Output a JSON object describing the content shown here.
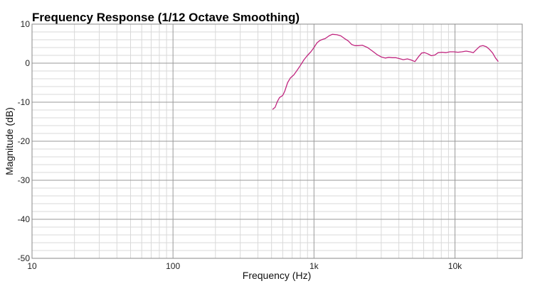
{
  "chart_data": {
    "type": "line",
    "title": "Frequency Response (1/12 Octave Smoothing)",
    "xlabel": "Frequency (Hz)",
    "ylabel": "Magnitude (dB)",
    "x_scale": "log",
    "xlim": [
      10,
      30000
    ],
    "ylim": [
      -50,
      10
    ],
    "x_ticks": [
      {
        "value": 10,
        "label": "10"
      },
      {
        "value": 100,
        "label": "100"
      },
      {
        "value": 1000,
        "label": "1k"
      },
      {
        "value": 10000,
        "label": "10k"
      }
    ],
    "y_ticks": [
      {
        "value": 10,
        "label": "10"
      },
      {
        "value": 0,
        "label": "0"
      },
      {
        "value": -10,
        "label": "-10"
      },
      {
        "value": -20,
        "label": "-20"
      },
      {
        "value": -30,
        "label": "-30"
      },
      {
        "value": -40,
        "label": "-40"
      },
      {
        "value": -50,
        "label": "-50"
      }
    ],
    "grid": true,
    "legend": "none",
    "series": [
      {
        "color": "#c0267f",
        "points": [
          [
            510,
            -11.8
          ],
          [
            530,
            -11.3
          ],
          [
            550,
            -9.8
          ],
          [
            570,
            -8.8
          ],
          [
            600,
            -8.3
          ],
          [
            620,
            -7.2
          ],
          [
            650,
            -5.0
          ],
          [
            680,
            -3.8
          ],
          [
            720,
            -3.0
          ],
          [
            760,
            -1.8
          ],
          [
            800,
            -0.6
          ],
          [
            850,
            0.9
          ],
          [
            900,
            2.0
          ],
          [
            950,
            2.9
          ],
          [
            1000,
            4.0
          ],
          [
            1050,
            5.2
          ],
          [
            1100,
            5.8
          ],
          [
            1150,
            6.1
          ],
          [
            1200,
            6.3
          ],
          [
            1280,
            7.0
          ],
          [
            1350,
            7.4
          ],
          [
            1450,
            7.3
          ],
          [
            1550,
            7.0
          ],
          [
            1650,
            6.3
          ],
          [
            1750,
            5.7
          ],
          [
            1850,
            4.8
          ],
          [
            1950,
            4.5
          ],
          [
            2050,
            4.5
          ],
          [
            2200,
            4.6
          ],
          [
            2400,
            4.0
          ],
          [
            2600,
            3.1
          ],
          [
            2800,
            2.2
          ],
          [
            3000,
            1.6
          ],
          [
            3200,
            1.3
          ],
          [
            3400,
            1.5
          ],
          [
            3600,
            1.4
          ],
          [
            3800,
            1.4
          ],
          [
            4000,
            1.2
          ],
          [
            4300,
            0.9
          ],
          [
            4600,
            1.1
          ],
          [
            4900,
            0.8
          ],
          [
            5200,
            0.4
          ],
          [
            5500,
            1.6
          ],
          [
            5800,
            2.6
          ],
          [
            6100,
            2.7
          ],
          [
            6400,
            2.4
          ],
          [
            6800,
            1.9
          ],
          [
            7200,
            2.1
          ],
          [
            7600,
            2.7
          ],
          [
            8100,
            2.8
          ],
          [
            8600,
            2.7
          ],
          [
            9200,
            2.9
          ],
          [
            9800,
            2.9
          ],
          [
            10500,
            2.8
          ],
          [
            11200,
            2.9
          ],
          [
            12000,
            3.1
          ],
          [
            12800,
            2.9
          ],
          [
            13500,
            2.7
          ],
          [
            14200,
            3.5
          ],
          [
            15000,
            4.3
          ],
          [
            15800,
            4.5
          ],
          [
            16700,
            4.2
          ],
          [
            17600,
            3.5
          ],
          [
            18500,
            2.6
          ],
          [
            19400,
            1.3
          ],
          [
            20200,
            0.5
          ]
        ]
      }
    ]
  }
}
